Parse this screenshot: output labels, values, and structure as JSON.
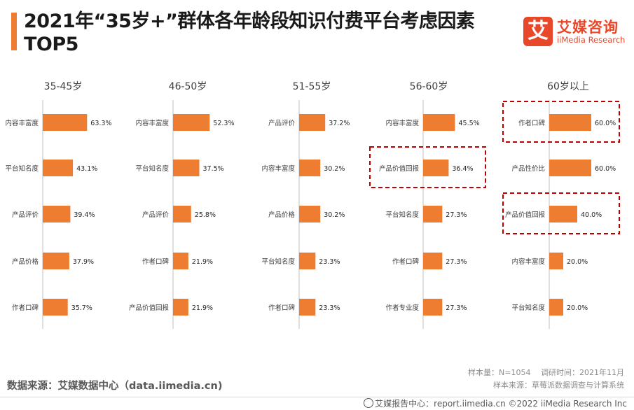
{
  "header": {
    "title": "2021年“35岁+”群体各年龄段知识付费平台考虑因素TOP5",
    "logo_glyph": "艾",
    "logo_cn": "艾媒咨询",
    "logo_en": "iiMedia Research"
  },
  "footer": {
    "source": "数据来源：艾媒数据中心（data.iimedia.cn)",
    "sample": "样本量：N=1054　 调研时间：2021年11月",
    "sample_source": "样本来源：草莓派数据调查与计算系统",
    "copyright": "艾媒报告中心：report.iimedia.cn ©2022 iiMedia Research Inc"
  },
  "colors": {
    "bar": "#ef7d31",
    "highlight": "#c00000",
    "axis": "#bfbfbf"
  },
  "chart_data": [
    {
      "type": "bar",
      "title": "35-45岁",
      "categories": [
        "内容丰富度",
        "平台知名度",
        "产品评价",
        "产品价格",
        "作者口碑"
      ],
      "values": [
        63.3,
        43.1,
        39.4,
        37.9,
        35.7
      ],
      "value_labels": [
        "63.3%",
        "43.1%",
        "39.4%",
        "37.9%",
        "35.7%"
      ],
      "highlight": []
    },
    {
      "type": "bar",
      "title": "46-50岁",
      "categories": [
        "内容丰富度",
        "平台知名度",
        "产品评价",
        "作者口碑",
        "产品价值回报"
      ],
      "values": [
        52.3,
        37.5,
        25.8,
        21.9,
        21.9
      ],
      "value_labels": [
        "52.3%",
        "37.5%",
        "25.8%",
        "21.9%",
        "21.9%"
      ],
      "highlight": []
    },
    {
      "type": "bar",
      "title": "51-55岁",
      "categories": [
        "产品评价",
        "内容丰富度",
        "产品价格",
        "平台知名度",
        "作者口碑"
      ],
      "values": [
        37.2,
        30.2,
        30.2,
        23.3,
        23.3
      ],
      "value_labels": [
        "37.2%",
        "30.2%",
        "30.2%",
        "23.3%",
        "23.3%"
      ],
      "highlight": []
    },
    {
      "type": "bar",
      "title": "56-60岁",
      "categories": [
        "内容丰富度",
        "产品价值回报",
        "平台知名度",
        "作者口碑",
        "作者专业度"
      ],
      "values": [
        45.5,
        36.4,
        27.3,
        27.3,
        27.3
      ],
      "value_labels": [
        "45.5%",
        "36.4%",
        "27.3%",
        "27.3%",
        "27.3%"
      ],
      "highlight": [
        1
      ]
    },
    {
      "type": "bar",
      "title": "60岁以上",
      "categories": [
        "作者口碑",
        "产品性价比",
        "产品价值回报",
        "内容丰富度",
        "平台知名度"
      ],
      "values": [
        60.0,
        60.0,
        40.0,
        20.0,
        20.0
      ],
      "value_labels": [
        "60.0%",
        "60.0%",
        "40.0%",
        "20.0%",
        "20.0%"
      ],
      "highlight": [
        0,
        2
      ]
    }
  ]
}
